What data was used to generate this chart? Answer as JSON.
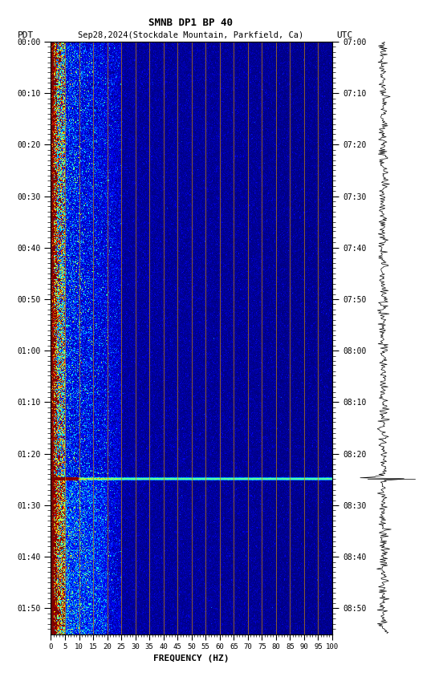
{
  "title_line1": "SMNB DP1 BP 40",
  "title_line2": "Sep28,2024(Stockdale Mountain, Parkfield, Ca)",
  "label_pdt": "PDT",
  "label_utc": "UTC",
  "xlabel": "FREQUENCY (HZ)",
  "freq_min": 0,
  "freq_max": 100,
  "freq_ticks": [
    0,
    5,
    10,
    15,
    20,
    25,
    30,
    35,
    40,
    45,
    50,
    55,
    60,
    65,
    70,
    75,
    80,
    85,
    90,
    95,
    100
  ],
  "freq_grid_lines": [
    5,
    10,
    15,
    20,
    25,
    30,
    35,
    40,
    45,
    50,
    55,
    60,
    65,
    70,
    75,
    80,
    85,
    90,
    95,
    100
  ],
  "left_time_ticks": [
    "00:00",
    "00:10",
    "00:20",
    "00:30",
    "00:40",
    "00:50",
    "01:00",
    "01:10",
    "01:20",
    "01:30",
    "01:40",
    "01:50"
  ],
  "right_time_ticks": [
    "07:00",
    "07:10",
    "07:20",
    "07:30",
    "07:40",
    "07:50",
    "08:00",
    "08:10",
    "08:20",
    "08:30",
    "08:40",
    "08:50"
  ],
  "total_minutes": 115,
  "n_time": 690,
  "n_freq": 500,
  "background_color": "#ffffff",
  "colormap": "jet",
  "grid_color": "#cc8800",
  "bright_band_minute": 85,
  "seismo_amplitude": 0.06,
  "seismo_spike_minute": 85,
  "seismo_spike_amplitude": 0.5
}
